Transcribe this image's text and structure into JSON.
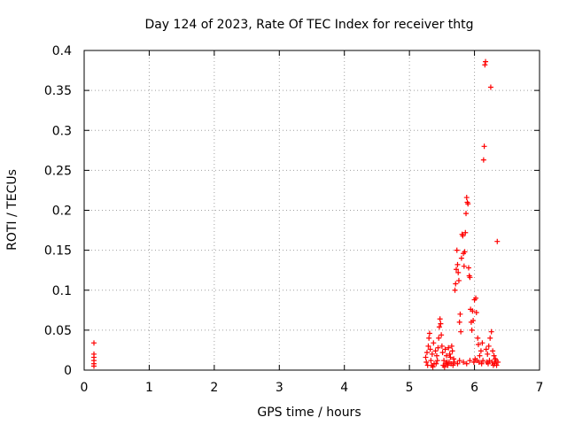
{
  "chart_data": {
    "type": "scatter",
    "title": "Day 124 of 2023, Rate Of TEC Index for receiver thtg",
    "xlabel": "GPS time / hours",
    "ylabel": "ROTI / TECUs",
    "xlim": [
      0,
      7
    ],
    "ylim": [
      0,
      0.4
    ],
    "grid": true,
    "marker": "+",
    "xticks": [
      0,
      1,
      2,
      3,
      4,
      5,
      6,
      7
    ],
    "xtick_labels": [
      "0",
      "1",
      "2",
      "3",
      "4",
      "5",
      "6",
      "7"
    ],
    "yticks": [
      0,
      0.05,
      0.1,
      0.15,
      0.2,
      0.25,
      0.3,
      0.35,
      0.4
    ],
    "ytick_labels": [
      "0",
      "0.05",
      "0.1",
      "0.15",
      "0.2",
      "0.25",
      "0.3",
      "0.35",
      "0.4"
    ],
    "series": [
      {
        "name": "ROTI",
        "color": "#ff0000",
        "points": [
          [
            0.15,
            0.034
          ],
          [
            0.15,
            0.02
          ],
          [
            0.15,
            0.016
          ],
          [
            0.15,
            0.012
          ],
          [
            0.15,
            0.008
          ],
          [
            0.15,
            0.005
          ],
          [
            5.25,
            0.016
          ],
          [
            5.27,
            0.022
          ],
          [
            5.29,
            0.03
          ],
          [
            5.3,
            0.04
          ],
          [
            5.31,
            0.046
          ],
          [
            5.32,
            0.026
          ],
          [
            5.33,
            0.012
          ],
          [
            5.35,
            0.02
          ],
          [
            5.37,
            0.034
          ],
          [
            5.38,
            0.008
          ],
          [
            5.4,
            0.024
          ],
          [
            5.42,
            0.018
          ],
          [
            5.44,
            0.028
          ],
          [
            5.45,
            0.04
          ],
          [
            5.46,
            0.054
          ],
          [
            5.47,
            0.064
          ],
          [
            5.48,
            0.058
          ],
          [
            5.49,
            0.044
          ],
          [
            5.5,
            0.03
          ],
          [
            5.51,
            0.022
          ],
          [
            5.53,
            0.012
          ],
          [
            5.55,
            0.026
          ],
          [
            5.57,
            0.018
          ],
          [
            5.58,
            0.01
          ],
          [
            5.6,
            0.028
          ],
          [
            5.62,
            0.02
          ],
          [
            5.63,
            0.016
          ],
          [
            5.65,
            0.03
          ],
          [
            5.66,
            0.024
          ],
          [
            5.68,
            0.014
          ],
          [
            5.7,
            0.1
          ],
          [
            5.71,
            0.108
          ],
          [
            5.72,
            0.126
          ],
          [
            5.73,
            0.15
          ],
          [
            5.74,
            0.132
          ],
          [
            5.75,
            0.122
          ],
          [
            5.76,
            0.112
          ],
          [
            5.77,
            0.06
          ],
          [
            5.78,
            0.07
          ],
          [
            5.79,
            0.048
          ],
          [
            5.8,
            0.14
          ],
          [
            5.81,
            0.17
          ],
          [
            5.82,
            0.168
          ],
          [
            5.83,
            0.146
          ],
          [
            5.84,
            0.13
          ],
          [
            5.85,
            0.148
          ],
          [
            5.86,
            0.172
          ],
          [
            5.87,
            0.196
          ],
          [
            5.88,
            0.216
          ],
          [
            5.89,
            0.21
          ],
          [
            5.9,
            0.208
          ],
          [
            5.91,
            0.128
          ],
          [
            5.92,
            0.118
          ],
          [
            5.93,
            0.116
          ],
          [
            5.94,
            0.076
          ],
          [
            5.95,
            0.06
          ],
          [
            5.96,
            0.05
          ],
          [
            5.97,
            0.074
          ],
          [
            5.98,
            0.062
          ],
          [
            6.0,
            0.088
          ],
          [
            6.02,
            0.09
          ],
          [
            6.03,
            0.072
          ],
          [
            6.05,
            0.04
          ],
          [
            6.06,
            0.032
          ],
          [
            6.08,
            0.018
          ],
          [
            6.1,
            0.024
          ],
          [
            6.12,
            0.034
          ],
          [
            6.14,
            0.263
          ],
          [
            6.15,
            0.28
          ],
          [
            6.16,
            0.382
          ],
          [
            6.17,
            0.386
          ],
          [
            6.18,
            0.026
          ],
          [
            6.2,
            0.02
          ],
          [
            6.22,
            0.03
          ],
          [
            6.24,
            0.04
          ],
          [
            6.25,
            0.354
          ],
          [
            6.26,
            0.048
          ],
          [
            6.28,
            0.024
          ],
          [
            6.3,
            0.018
          ],
          [
            6.32,
            0.014
          ],
          [
            6.35,
            0.161
          ],
          [
            6.36,
            0.01
          ],
          [
            5.26,
            0.01
          ],
          [
            5.28,
            0.006
          ],
          [
            5.34,
            0.006
          ],
          [
            5.36,
            0.004
          ],
          [
            5.41,
            0.008
          ],
          [
            5.43,
            0.012
          ],
          [
            5.52,
            0.006
          ],
          [
            5.54,
            0.004
          ],
          [
            5.56,
            0.008
          ],
          [
            5.59,
            0.006
          ],
          [
            5.61,
            0.01
          ],
          [
            5.64,
            0.008
          ],
          [
            5.67,
            0.006
          ],
          [
            5.69,
            0.01
          ],
          [
            5.74,
            0.008
          ],
          [
            5.77,
            0.012
          ],
          [
            5.83,
            0.01
          ],
          [
            5.88,
            0.008
          ],
          [
            5.93,
            0.012
          ],
          [
            5.99,
            0.01
          ],
          [
            6.01,
            0.014
          ],
          [
            6.04,
            0.012
          ],
          [
            6.07,
            0.01
          ],
          [
            6.11,
            0.008
          ],
          [
            6.13,
            0.012
          ],
          [
            6.19,
            0.01
          ],
          [
            6.21,
            0.008
          ],
          [
            6.23,
            0.012
          ],
          [
            6.27,
            0.01
          ],
          [
            6.29,
            0.006
          ],
          [
            6.31,
            0.008
          ],
          [
            6.33,
            0.012
          ],
          [
            6.34,
            0.006
          ]
        ]
      }
    ]
  }
}
